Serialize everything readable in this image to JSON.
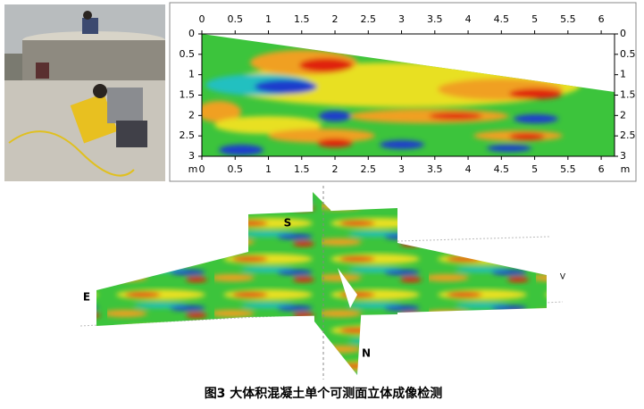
{
  "profile": {
    "xlim": [
      0,
      6.2
    ],
    "ylim": [
      0,
      3
    ],
    "xticks": [
      0,
      0.5,
      1,
      1.5,
      2,
      2.5,
      3,
      3.5,
      4,
      4.5,
      5,
      5.5,
      6
    ],
    "yticks": [
      0,
      0.5,
      1,
      1.5,
      2,
      2.5,
      3
    ],
    "unit": "m"
  },
  "fence": {
    "labels": [
      "S",
      "E",
      "N",
      "V"
    ]
  },
  "caption": "图3 大体积混凝土单个可测面立体成像检测"
}
